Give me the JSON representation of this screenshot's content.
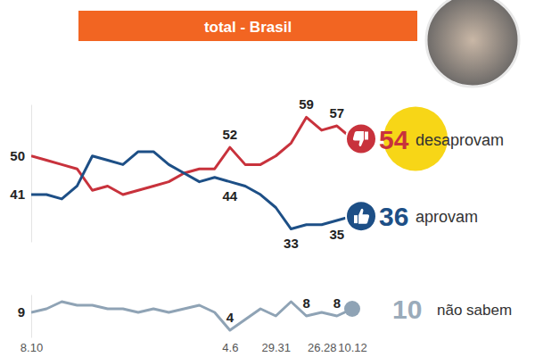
{
  "chart_data": [
    {
      "type": "line",
      "title": "total - Brasil",
      "categories": [
        "8.10",
        null,
        null,
        null,
        null,
        null,
        null,
        null,
        null,
        null,
        null,
        null,
        null,
        "4.6",
        null,
        null,
        "29.31",
        null,
        null,
        "26.28",
        null,
        "10.12"
      ],
      "series": [
        {
          "name": "desaprovam",
          "color": "#c8323c",
          "values": [
            50,
            49,
            48,
            47,
            42,
            43,
            41,
            42,
            43,
            44,
            46,
            47,
            47,
            52,
            48,
            48,
            50,
            53,
            59,
            56,
            57,
            54
          ],
          "value_labels": [
            "50",
            null,
            null,
            null,
            null,
            null,
            null,
            null,
            null,
            null,
            null,
            null,
            null,
            "52",
            null,
            null,
            null,
            null,
            "59",
            null,
            "57",
            "54"
          ]
        },
        {
          "name": "aprovam",
          "color": "#1d4f86",
          "values": [
            41,
            41,
            40,
            43,
            50,
            49,
            48,
            51,
            51,
            48,
            46,
            44,
            45,
            44,
            43,
            41,
            38,
            33,
            34,
            34,
            35,
            36
          ],
          "value_labels": [
            "41",
            null,
            null,
            null,
            null,
            null,
            null,
            null,
            null,
            null,
            null,
            null,
            null,
            "44",
            null,
            null,
            null,
            "33",
            null,
            null,
            "35",
            "36"
          ]
        }
      ],
      "ylim": [
        30,
        62
      ],
      "yticks": [],
      "tick_labels": false
    },
    {
      "type": "line",
      "categories": [
        "8.10",
        null,
        null,
        null,
        null,
        null,
        null,
        null,
        null,
        null,
        null,
        null,
        null,
        "4.6",
        null,
        null,
        "29.31",
        null,
        null,
        "26.28",
        null,
        "10.12"
      ],
      "series": [
        {
          "name": "não sabem",
          "color": "#8fa3b5",
          "values": [
            9,
            10,
            12,
            11,
            11,
            10,
            10,
            9,
            10,
            9,
            10,
            11,
            9,
            4,
            7,
            10,
            8,
            12,
            8,
            9,
            8,
            10
          ],
          "value_labels": [
            "9",
            null,
            null,
            null,
            null,
            null,
            null,
            null,
            null,
            null,
            null,
            null,
            null,
            "4",
            null,
            null,
            null,
            null,
            "8",
            null,
            "8",
            "10"
          ]
        }
      ],
      "ylim": [
        2,
        14
      ],
      "yticks": [],
      "tick_labels": "x"
    }
  ]
}
